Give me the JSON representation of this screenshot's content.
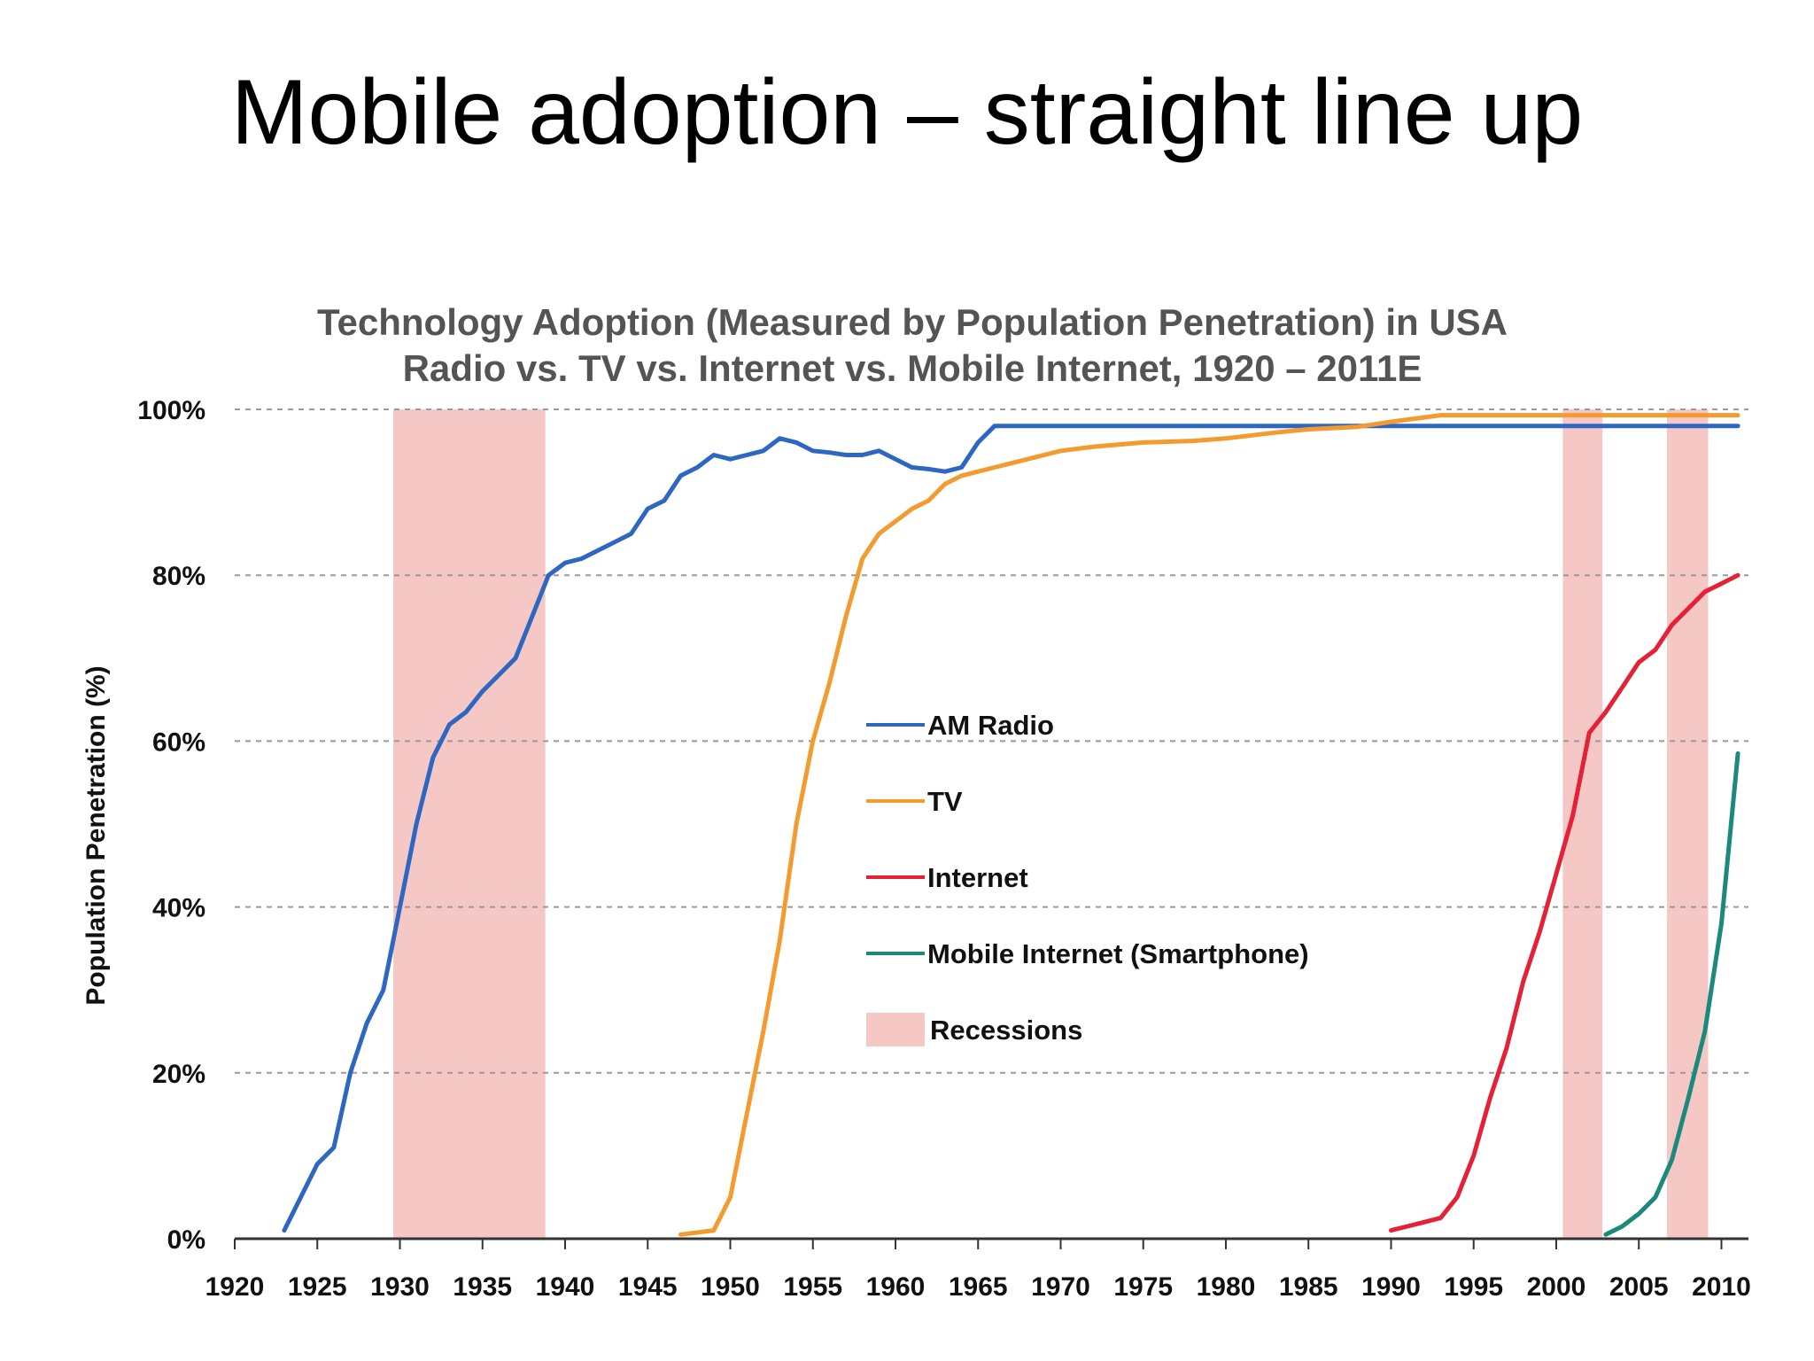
{
  "slide": {
    "title": "Mobile adoption – straight line up"
  },
  "chart_data": {
    "type": "line",
    "title": "Technology Adoption (Measured by Population Penetration) in USA",
    "subtitle": "Radio vs. TV vs. Internet vs. Mobile Internet, 1920 – 2011E",
    "xlabel": "",
    "ylabel": "Population Penetration (%)",
    "xlim": [
      1920,
      2012
    ],
    "ylim": [
      0,
      100
    ],
    "x_ticks": [
      1920,
      1925,
      1930,
      1935,
      1940,
      1945,
      1950,
      1955,
      1960,
      1965,
      1970,
      1975,
      1980,
      1985,
      1990,
      1995,
      2000,
      2005,
      2010
    ],
    "y_ticks": [
      "0%",
      "20%",
      "40%",
      "60%",
      "80%",
      "100%"
    ],
    "y_tick_values": [
      0,
      20,
      40,
      60,
      80,
      100
    ],
    "grid": "horizontal dashed",
    "legend_position": "center",
    "series": [
      {
        "name": "AM Radio",
        "color": "#2e67c2",
        "x": [
          1923,
          1925,
          1926,
          1927,
          1928,
          1929,
          1930,
          1931,
          1932,
          1933,
          1934,
          1935,
          1936,
          1937,
          1938,
          1939,
          1940,
          1941,
          1942,
          1943,
          1944,
          1945,
          1946,
          1947,
          1948,
          1949,
          1950,
          1951,
          1952,
          1953,
          1954,
          1955,
          1956,
          1957,
          1958,
          1959,
          1960,
          1961,
          1962,
          1963,
          1964,
          1965,
          1966,
          1970,
          1980,
          1990,
          2000,
          2011
        ],
        "y": [
          1,
          9,
          11,
          20,
          26,
          30,
          40,
          50,
          58,
          62,
          63.5,
          66,
          68,
          70,
          75,
          80,
          81.5,
          82,
          83,
          84,
          85,
          88,
          89,
          92,
          93,
          94.5,
          94,
          94.5,
          95,
          96.5,
          96,
          95,
          94.8,
          94.5,
          94.5,
          95,
          94,
          93,
          92.8,
          92.5,
          93,
          96,
          98,
          98,
          98,
          98,
          98,
          98
        ]
      },
      {
        "name": "TV",
        "color": "#f39b2f",
        "x": [
          1947,
          1949,
          1950,
          1951,
          1952,
          1953,
          1954,
          1955,
          1956,
          1957,
          1958,
          1959,
          1960,
          1961,
          1962,
          1963,
          1964,
          1965,
          1966,
          1968,
          1970,
          1972,
          1975,
          1978,
          1980,
          1983,
          1985,
          1988,
          1990,
          1993,
          1995,
          2000,
          2005,
          2011
        ],
        "y": [
          0.5,
          1,
          5,
          15,
          25,
          36,
          50,
          60,
          67,
          75,
          82,
          85,
          86.5,
          88,
          89,
          91,
          92,
          92.5,
          93,
          94,
          95,
          95.5,
          96,
          96.2,
          96.5,
          97.2,
          97.6,
          97.9,
          98.5,
          99.3,
          99.3,
          99.3,
          99.3,
          99.3
        ]
      },
      {
        "name": "Internet",
        "color": "#e52135",
        "x": [
          1990,
          1991,
          1992,
          1993,
          1994,
          1995,
          1996,
          1997,
          1998,
          1999,
          2000,
          2001,
          2002,
          2003,
          2004,
          2005,
          2006,
          2007,
          2008,
          2009,
          2010,
          2011
        ],
        "y": [
          1,
          1.5,
          2,
          2.5,
          5,
          10,
          17,
          23,
          31,
          37,
          44,
          51,
          61,
          63.5,
          66.5,
          69.5,
          71,
          74,
          76,
          78,
          79,
          80
        ]
      },
      {
        "name": "Mobile Internet (Smartphone)",
        "color": "#1b8a7c",
        "x": [
          2003,
          2004,
          2005,
          2006,
          2007,
          2008,
          2009,
          2010,
          2011
        ],
        "y": [
          0.5,
          1.5,
          3,
          5,
          9.5,
          17,
          25,
          38,
          58.5
        ]
      }
    ],
    "recessions": {
      "name": "Recessions",
      "color": "#f5c8c5",
      "periods": [
        [
          1929.6,
          1938.8
        ],
        [
          2000.4,
          2002.8
        ],
        [
          2006.7,
          2009.2
        ]
      ]
    }
  }
}
